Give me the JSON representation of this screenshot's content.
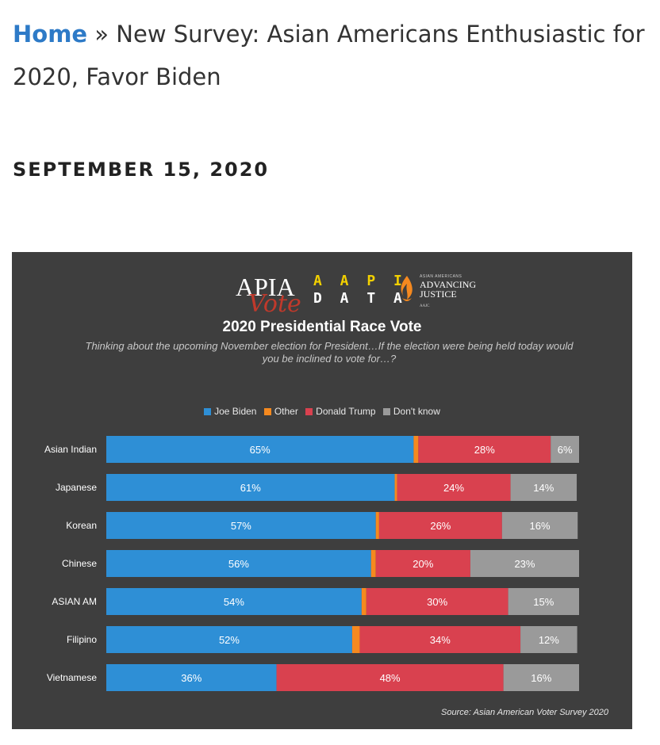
{
  "breadcrumb": {
    "home": "Home",
    "separator": " » ",
    "current": "New Survey: Asian Americans Enthusiastic for 2020, Favor Biden"
  },
  "date": "SEPTEMBER 15, 2020",
  "logos": {
    "apia": "APIA",
    "apia_vote": "Vote",
    "aapi_line1": "A A P I",
    "aapi_line2": "D A T A",
    "aaj_small": "ASIAN AMERICANS",
    "aaj_line1": "ADVANCING",
    "aaj_line2": "JUSTICE",
    "aaj_tag": "AAJC"
  },
  "chart_data": {
    "type": "bar",
    "orientation": "horizontal",
    "stacked": true,
    "title": "2020 Presidential Race Vote",
    "subtitle": "Thinking about the upcoming November election for President…If the election were being held today would you be inclined to vote for…?",
    "categories": [
      "Asian Indian",
      "Japanese",
      "Korean",
      "Chinese",
      "ASIAN AM",
      "Filipino",
      "Vietnamese"
    ],
    "series": [
      {
        "name": "Joe Biden",
        "color": "#2e8fd6",
        "values": [
          65,
          61,
          57,
          56,
          54,
          52,
          36
        ]
      },
      {
        "name": "Other",
        "color": "#f5891f",
        "values": [
          1,
          0.5,
          0.7,
          1,
          1,
          1.6,
          0
        ]
      },
      {
        "name": "Donald Trump",
        "color": "#d9414f",
        "values": [
          28,
          24,
          26,
          20,
          30,
          34,
          48
        ]
      },
      {
        "name": "Don't know",
        "color": "#9a9a9a",
        "values": [
          6,
          14,
          16,
          23,
          15,
          12,
          16
        ]
      }
    ],
    "labels": {
      "Joe Biden": [
        "65%",
        "61%",
        "57%",
        "56%",
        "54%",
        "52%",
        "36%"
      ],
      "Donald Trump": [
        "28%",
        "24%",
        "26%",
        "20%",
        "30%",
        "34%",
        "48%"
      ],
      "Don't know": [
        "6%",
        "14%",
        "16%",
        "23%",
        "15%",
        "12%",
        "16%"
      ]
    },
    "xlim": [
      0,
      100
    ],
    "legend_position": "top-center",
    "grid": false,
    "source": "Source: Asian American Voter Survey 2020"
  }
}
